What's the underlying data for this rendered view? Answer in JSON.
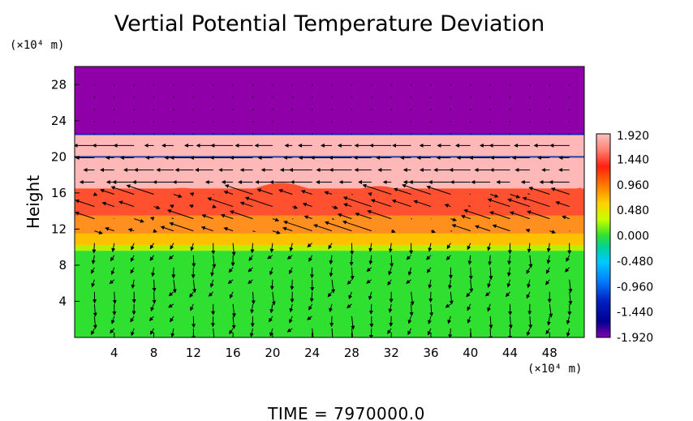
{
  "chart_data": {
    "type": "heatmap",
    "title": "Vertial Potential Temperature Deviation",
    "ylabel": "Height",
    "x_unit": "(×10⁴ m)",
    "y_unit": "(×10⁴ m)",
    "footer": "TIME  =  7970000.0",
    "xlim": [
      0,
      51.5
    ],
    "ylim": [
      0,
      30
    ],
    "x_ticks": [
      4,
      8,
      12,
      16,
      20,
      24,
      28,
      32,
      36,
      40,
      44,
      48
    ],
    "y_ticks": [
      4,
      8,
      12,
      16,
      20,
      24,
      28
    ],
    "colorbar": {
      "labels": [
        "1.920",
        "1.440",
        "0.960",
        "0.480",
        "0.000",
        "-0.480",
        "-0.960",
        "-1.440",
        "-1.920"
      ],
      "range": [
        -1.92,
        1.92
      ],
      "colors": [
        "#ffc0c0",
        "#ff8070",
        "#ff2010",
        "#ff8000",
        "#ffd000",
        "#c8ff00",
        "#30e030",
        "#00d0a0",
        "#00c8ff",
        "#0080ff",
        "#0020c0",
        "#000090",
        "#8000b0"
      ]
    },
    "layers": [
      {
        "y0": 22.5,
        "y1": 30,
        "value": -1.92,
        "color": "#9000a8"
      },
      {
        "y0": 20,
        "y1": 22.5,
        "value": 1.92,
        "color": "#ffb8b8"
      },
      {
        "y0": 16.5,
        "y1": 20,
        "value": 1.92,
        "color": "#ffb8b8"
      },
      {
        "y0": 13.5,
        "y1": 16.5,
        "value": 1.5,
        "color": "#ff5030"
      },
      {
        "y0": 11.5,
        "y1": 13.5,
        "value": 1.2,
        "color": "#ff9020"
      },
      {
        "y0": 10.2,
        "y1": 11.5,
        "value": 0.8,
        "color": "#ffc000"
      },
      {
        "y0": 9.6,
        "y1": 10.2,
        "value": 0.3,
        "color": "#b8f000"
      },
      {
        "y0": 0,
        "y1": 9.6,
        "value": 0.0,
        "color": "#30e030"
      }
    ],
    "lines": [
      {
        "y": 22.5,
        "color": "#2020c0"
      },
      {
        "y": 20.0,
        "color": "#2040a0"
      }
    ],
    "vectors": {
      "x_start": 2,
      "x_step": 2,
      "x_end": 51,
      "y_start": 1,
      "y_step": 1.35,
      "y_end": 29
    }
  }
}
